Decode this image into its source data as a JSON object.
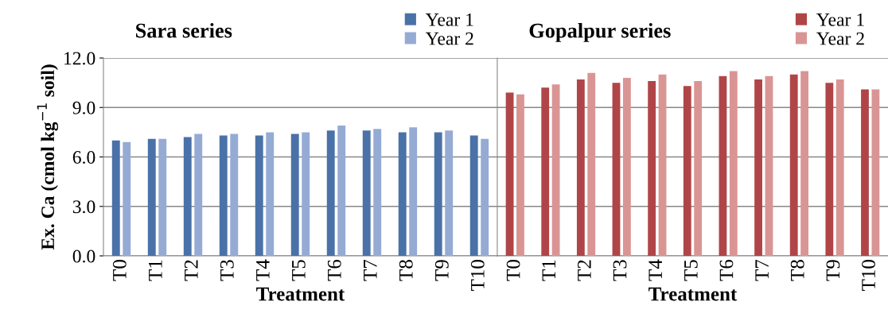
{
  "chart_data": [
    {
      "type": "bar",
      "title": "Sara series",
      "xlabel": "Treatment",
      "ylabel": "Ex. Ca (cmol kg$^{−1}$ soil)",
      "categories": [
        "T0",
        "T1",
        "T2",
        "T3",
        "T4",
        "T5",
        "T6",
        "T7",
        "T8",
        "T9",
        "T10"
      ],
      "series": [
        {
          "name": "Year 1",
          "color": "#4a72a8",
          "values": [
            7.0,
            7.1,
            7.2,
            7.3,
            7.3,
            7.4,
            7.6,
            7.6,
            7.5,
            7.5,
            7.3
          ]
        },
        {
          "name": "Year 2",
          "color": "#95abd4",
          "values": [
            6.9,
            7.1,
            7.4,
            7.4,
            7.5,
            7.5,
            7.9,
            7.7,
            7.8,
            7.6,
            7.1
          ]
        }
      ],
      "ylim": [
        0,
        12
      ],
      "yticks": [
        {
          "value": 0,
          "label": "0.0"
        },
        {
          "value": 3,
          "label": "3.0"
        },
        {
          "value": 6,
          "label": "6.0"
        },
        {
          "value": 9,
          "label": "9.0"
        },
        {
          "value": 12,
          "label": "12.0"
        }
      ],
      "grid": "y",
      "legend": "top right"
    },
    {
      "type": "bar",
      "title": "Gopalpur series",
      "xlabel": "Treatment",
      "categories": [
        "T0",
        "T1",
        "T2",
        "T3",
        "T4",
        "T5",
        "T6",
        "T7",
        "T8",
        "T9",
        "T10"
      ],
      "series": [
        {
          "name": "Year 1",
          "color": "#b04547",
          "values": [
            9.9,
            10.2,
            10.7,
            10.5,
            10.6,
            10.3,
            10.9,
            10.7,
            11.0,
            10.5,
            10.1
          ]
        },
        {
          "name": "Year 2",
          "color": "#d99594",
          "values": [
            9.8,
            10.4,
            11.1,
            10.8,
            11.0,
            10.6,
            11.2,
            10.9,
            11.2,
            10.7,
            10.1
          ]
        }
      ],
      "ylim": [
        0,
        12
      ],
      "yticks": [
        0,
        3,
        6,
        9,
        12
      ],
      "grid": "y",
      "legend": "top right",
      "tick_labels": "x"
    }
  ]
}
